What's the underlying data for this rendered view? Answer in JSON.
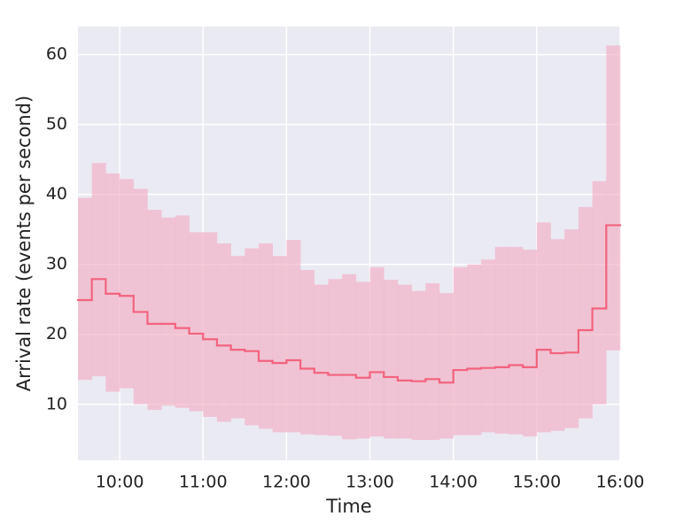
{
  "chart_data": {
    "type": "step",
    "xlabel": "Time",
    "ylabel": "Arrival rate (events per second)",
    "x": [
      570,
      580,
      590,
      600,
      610,
      620,
      630,
      640,
      650,
      660,
      670,
      680,
      690,
      700,
      710,
      720,
      730,
      740,
      750,
      760,
      770,
      780,
      790,
      800,
      810,
      820,
      830,
      840,
      850,
      860,
      870,
      880,
      890,
      900,
      910,
      920,
      930,
      940,
      950
    ],
    "values": [
      24.9,
      27.9,
      25.8,
      25.5,
      23.2,
      21.5,
      21.5,
      20.9,
      20.1,
      19.3,
      18.4,
      17.8,
      17.6,
      16.2,
      15.9,
      16.3,
      15.1,
      14.5,
      14.2,
      14.2,
      13.8,
      14.6,
      13.9,
      13.4,
      13.3,
      13.6,
      13.1,
      14.9,
      15.1,
      15.2,
      15.3,
      15.6,
      15.3,
      17.8,
      17.3,
      17.4,
      20.6,
      23.7,
      35.6
    ],
    "band_upper": [
      39.5,
      44.5,
      43.0,
      42.2,
      40.8,
      37.8,
      36.7,
      37.0,
      34.6,
      34.6,
      33.0,
      31.2,
      32.3,
      33.0,
      31.2,
      33.5,
      29.2,
      27.1,
      27.9,
      28.6,
      27.5,
      29.6,
      27.8,
      27.1,
      26.2,
      27.3,
      25.9,
      29.6,
      30.0,
      30.7,
      32.5,
      32.5,
      32.1,
      36.0,
      33.6,
      35.0,
      38.2,
      41.9,
      61.3
    ],
    "band_lower": [
      13.5,
      14.0,
      11.8,
      12.3,
      10.0,
      9.2,
      9.8,
      9.5,
      9.0,
      8.2,
      7.5,
      8.0,
      7.0,
      6.5,
      6.0,
      6.0,
      5.7,
      5.6,
      5.5,
      5.0,
      5.1,
      5.4,
      5.1,
      5.1,
      4.9,
      4.9,
      5.1,
      5.6,
      5.6,
      6.0,
      5.8,
      5.7,
      5.4,
      6.0,
      6.2,
      6.6,
      8.0,
      10.0,
      17.7
    ],
    "color": "#f2637e",
    "band_color": "#f4a9bf",
    "xlim": [
      570,
      960
    ],
    "xticks": [
      {
        "value": 600,
        "label": "10:00"
      },
      {
        "value": 660,
        "label": "11:00"
      },
      {
        "value": 720,
        "label": "12:00"
      },
      {
        "value": 780,
        "label": "13:00"
      },
      {
        "value": 840,
        "label": "14:00"
      },
      {
        "value": 900,
        "label": "15:00"
      },
      {
        "value": 960,
        "label": "16:00"
      }
    ],
    "ylim": [
      2,
      64
    ],
    "yticks": [
      10,
      20,
      30,
      40,
      50,
      60
    ],
    "grid": true
  }
}
